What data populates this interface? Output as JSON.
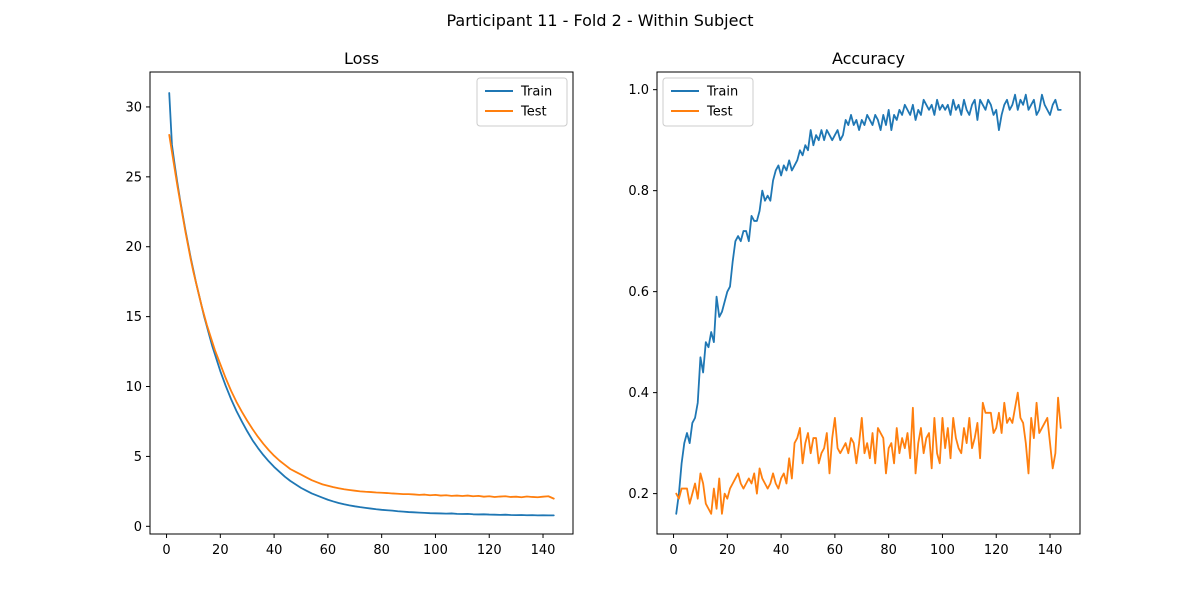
{
  "figure": {
    "suptitle": "Participant 11 - Fold 2 - Within Subject"
  },
  "colors": {
    "train": "#1f77b4",
    "test": "#ff7f0e"
  },
  "chart_data": [
    {
      "type": "line",
      "title": "Loss",
      "xlabel": "",
      "ylabel": "",
      "xlim": [
        -6.15,
        151.15
      ],
      "ylim": [
        -0.55,
        32.5
      ],
      "xticks": [
        0,
        20,
        40,
        60,
        80,
        100,
        120,
        140
      ],
      "yticks": [
        0,
        5,
        10,
        15,
        20,
        25,
        30
      ],
      "ytick_labels": [
        "0",
        "5",
        "10",
        "15",
        "20",
        "25",
        "30"
      ],
      "legend": "top-right",
      "grid": false,
      "series": [
        {
          "name": "Train",
          "x": [
            1,
            2,
            3,
            4,
            5,
            6,
            7,
            8,
            9,
            10,
            11,
            12,
            13,
            14,
            15,
            16,
            17,
            18,
            19,
            20,
            22,
            24,
            26,
            28,
            30,
            32,
            34,
            36,
            38,
            40,
            42,
            44,
            46,
            48,
            50,
            52,
            54,
            56,
            58,
            60,
            62,
            64,
            66,
            68,
            70,
            72,
            74,
            76,
            78,
            80,
            82,
            84,
            86,
            88,
            90,
            92,
            94,
            96,
            98,
            100,
            102,
            104,
            106,
            108,
            110,
            112,
            114,
            116,
            118,
            120,
            122,
            124,
            126,
            128,
            130,
            132,
            134,
            136,
            138,
            140,
            142,
            144
          ],
          "y": [
            31.0,
            27.3,
            25.9,
            24.6,
            23.4,
            22.3,
            21.2,
            20.2,
            19.2,
            18.3,
            17.4,
            16.6,
            15.8,
            15.0,
            14.3,
            13.6,
            12.9,
            12.3,
            11.7,
            11.1,
            10.05,
            9.1,
            8.25,
            7.5,
            6.8,
            6.15,
            5.6,
            5.1,
            4.65,
            4.25,
            3.9,
            3.55,
            3.25,
            3.0,
            2.75,
            2.55,
            2.35,
            2.2,
            2.05,
            1.9,
            1.78,
            1.67,
            1.58,
            1.5,
            1.43,
            1.37,
            1.32,
            1.27,
            1.22,
            1.18,
            1.15,
            1.12,
            1.08,
            1.05,
            1.02,
            1.0,
            0.98,
            0.96,
            0.94,
            0.93,
            0.92,
            0.91,
            0.92,
            0.89,
            0.88,
            0.89,
            0.86,
            0.85,
            0.86,
            0.84,
            0.83,
            0.82,
            0.83,
            0.81,
            0.8,
            0.81,
            0.79,
            0.8,
            0.78,
            0.79,
            0.78,
            0.78
          ]
        },
        {
          "name": "Test",
          "x": [
            1,
            2,
            3,
            4,
            5,
            6,
            7,
            8,
            9,
            10,
            11,
            12,
            13,
            14,
            15,
            16,
            17,
            18,
            19,
            20,
            22,
            24,
            26,
            28,
            30,
            32,
            34,
            36,
            38,
            40,
            42,
            44,
            46,
            48,
            50,
            52,
            54,
            56,
            58,
            60,
            62,
            64,
            66,
            68,
            70,
            72,
            74,
            76,
            78,
            80,
            82,
            84,
            86,
            88,
            90,
            92,
            94,
            96,
            98,
            100,
            102,
            104,
            106,
            108,
            110,
            112,
            114,
            116,
            118,
            120,
            122,
            124,
            126,
            128,
            130,
            132,
            134,
            136,
            138,
            140,
            142,
            144
          ],
          "y": [
            28.0,
            26.8,
            25.6,
            24.4,
            23.3,
            22.2,
            21.1,
            20.1,
            19.1,
            18.2,
            17.4,
            16.6,
            15.8,
            15.1,
            14.4,
            13.8,
            13.2,
            12.6,
            12.1,
            11.6,
            10.6,
            9.7,
            8.9,
            8.2,
            7.55,
            6.95,
            6.4,
            5.9,
            5.45,
            5.05,
            4.7,
            4.4,
            4.1,
            3.9,
            3.7,
            3.5,
            3.3,
            3.15,
            3.0,
            2.9,
            2.8,
            2.72,
            2.65,
            2.6,
            2.55,
            2.5,
            2.47,
            2.45,
            2.42,
            2.4,
            2.38,
            2.35,
            2.33,
            2.3,
            2.3,
            2.28,
            2.25,
            2.27,
            2.22,
            2.25,
            2.2,
            2.22,
            2.18,
            2.2,
            2.17,
            2.2,
            2.15,
            2.18,
            2.12,
            2.15,
            2.1,
            2.13,
            2.15,
            2.1,
            2.12,
            2.08,
            2.13,
            2.1,
            2.08,
            2.12,
            2.15,
            1.98
          ]
        }
      ]
    },
    {
      "type": "line",
      "title": "Accuracy",
      "xlabel": "",
      "ylabel": "",
      "xlim": [
        -6.15,
        151.15
      ],
      "ylim": [
        0.12,
        1.035
      ],
      "xticks": [
        0,
        20,
        40,
        60,
        80,
        100,
        120,
        140
      ],
      "yticks": [
        0.2,
        0.4,
        0.6,
        0.8,
        1.0
      ],
      "ytick_labels": [
        "0.2",
        "0.4",
        "0.6",
        "0.8",
        "1.0"
      ],
      "legend": "top-left",
      "grid": false,
      "series": [
        {
          "name": "Train",
          "x": [
            1,
            2,
            3,
            4,
            5,
            6,
            7,
            8,
            9,
            10,
            11,
            12,
            13,
            14,
            15,
            16,
            17,
            18,
            19,
            20,
            21,
            22,
            23,
            24,
            25,
            26,
            27,
            28,
            29,
            30,
            31,
            32,
            33,
            34,
            35,
            36,
            37,
            38,
            39,
            40,
            41,
            42,
            43,
            44,
            45,
            46,
            47,
            48,
            49,
            50,
            51,
            52,
            53,
            54,
            55,
            56,
            57,
            58,
            59,
            60,
            61,
            62,
            63,
            64,
            65,
            66,
            67,
            68,
            69,
            70,
            71,
            72,
            73,
            74,
            75,
            76,
            77,
            78,
            79,
            80,
            81,
            82,
            83,
            84,
            85,
            86,
            87,
            88,
            89,
            90,
            91,
            92,
            93,
            94,
            95,
            96,
            97,
            98,
            99,
            100,
            101,
            102,
            103,
            104,
            105,
            106,
            107,
            108,
            109,
            110,
            111,
            112,
            113,
            114,
            115,
            116,
            117,
            118,
            119,
            120,
            121,
            122,
            123,
            124,
            125,
            126,
            127,
            128,
            129,
            130,
            131,
            132,
            133,
            134,
            135,
            136,
            137,
            138,
            139,
            140,
            141,
            142,
            143,
            144
          ],
          "y": [
            0.16,
            0.2,
            0.26,
            0.3,
            0.32,
            0.3,
            0.34,
            0.35,
            0.38,
            0.47,
            0.44,
            0.5,
            0.49,
            0.52,
            0.5,
            0.59,
            0.55,
            0.56,
            0.58,
            0.6,
            0.61,
            0.66,
            0.7,
            0.71,
            0.7,
            0.72,
            0.72,
            0.7,
            0.75,
            0.74,
            0.74,
            0.76,
            0.8,
            0.78,
            0.79,
            0.78,
            0.82,
            0.84,
            0.85,
            0.83,
            0.85,
            0.84,
            0.86,
            0.84,
            0.85,
            0.86,
            0.88,
            0.87,
            0.89,
            0.88,
            0.92,
            0.89,
            0.91,
            0.9,
            0.92,
            0.9,
            0.92,
            0.91,
            0.9,
            0.91,
            0.92,
            0.9,
            0.91,
            0.94,
            0.93,
            0.95,
            0.93,
            0.94,
            0.92,
            0.94,
            0.93,
            0.95,
            0.94,
            0.93,
            0.95,
            0.94,
            0.92,
            0.95,
            0.93,
            0.96,
            0.92,
            0.95,
            0.94,
            0.96,
            0.95,
            0.97,
            0.96,
            0.95,
            0.97,
            0.94,
            0.96,
            0.95,
            0.98,
            0.97,
            0.96,
            0.97,
            0.95,
            0.98,
            0.96,
            0.97,
            0.96,
            0.97,
            0.95,
            0.98,
            0.96,
            0.97,
            0.95,
            0.98,
            0.96,
            0.95,
            0.97,
            0.98,
            0.94,
            0.98,
            0.97,
            0.96,
            0.98,
            0.97,
            0.95,
            0.96,
            0.92,
            0.95,
            0.97,
            0.98,
            0.96,
            0.97,
            0.99,
            0.96,
            0.98,
            0.97,
            0.99,
            0.96,
            0.97,
            0.98,
            0.95,
            0.96,
            0.99,
            0.97,
            0.96,
            0.95,
            0.97,
            0.98,
            0.96,
            0.96
          ]
        },
        {
          "name": "Test",
          "x": [
            1,
            2,
            3,
            4,
            5,
            6,
            7,
            8,
            9,
            10,
            11,
            12,
            13,
            14,
            15,
            16,
            17,
            18,
            19,
            20,
            21,
            22,
            23,
            24,
            25,
            26,
            27,
            28,
            29,
            30,
            31,
            32,
            33,
            34,
            35,
            36,
            37,
            38,
            39,
            40,
            41,
            42,
            43,
            44,
            45,
            46,
            47,
            48,
            49,
            50,
            51,
            52,
            53,
            54,
            55,
            56,
            57,
            58,
            59,
            60,
            61,
            62,
            63,
            64,
            65,
            66,
            67,
            68,
            69,
            70,
            71,
            72,
            73,
            74,
            75,
            76,
            77,
            78,
            79,
            80,
            81,
            82,
            83,
            84,
            85,
            86,
            87,
            88,
            89,
            90,
            91,
            92,
            93,
            94,
            95,
            96,
            97,
            98,
            99,
            100,
            101,
            102,
            103,
            104,
            105,
            106,
            107,
            108,
            109,
            110,
            111,
            112,
            113,
            114,
            115,
            116,
            117,
            118,
            119,
            120,
            121,
            122,
            123,
            124,
            125,
            126,
            127,
            128,
            129,
            130,
            131,
            132,
            133,
            134,
            135,
            136,
            137,
            138,
            139,
            140,
            141,
            142,
            143,
            144
          ],
          "y": [
            0.2,
            0.19,
            0.21,
            0.21,
            0.21,
            0.18,
            0.2,
            0.22,
            0.19,
            0.24,
            0.22,
            0.18,
            0.17,
            0.16,
            0.21,
            0.17,
            0.23,
            0.16,
            0.2,
            0.19,
            0.21,
            0.22,
            0.23,
            0.24,
            0.22,
            0.21,
            0.22,
            0.23,
            0.22,
            0.24,
            0.2,
            0.25,
            0.23,
            0.22,
            0.21,
            0.22,
            0.24,
            0.22,
            0.21,
            0.23,
            0.24,
            0.22,
            0.27,
            0.23,
            0.3,
            0.31,
            0.33,
            0.26,
            0.3,
            0.32,
            0.28,
            0.31,
            0.31,
            0.26,
            0.28,
            0.29,
            0.32,
            0.24,
            0.31,
            0.35,
            0.29,
            0.28,
            0.29,
            0.3,
            0.28,
            0.31,
            0.3,
            0.26,
            0.3,
            0.35,
            0.28,
            0.3,
            0.27,
            0.32,
            0.26,
            0.33,
            0.32,
            0.31,
            0.24,
            0.29,
            0.3,
            0.26,
            0.33,
            0.28,
            0.31,
            0.29,
            0.32,
            0.27,
            0.37,
            0.24,
            0.3,
            0.33,
            0.28,
            0.31,
            0.32,
            0.25,
            0.35,
            0.28,
            0.26,
            0.35,
            0.29,
            0.33,
            0.27,
            0.35,
            0.31,
            0.29,
            0.28,
            0.33,
            0.3,
            0.35,
            0.29,
            0.31,
            0.34,
            0.27,
            0.38,
            0.36,
            0.36,
            0.36,
            0.32,
            0.33,
            0.36,
            0.32,
            0.38,
            0.34,
            0.35,
            0.34,
            0.37,
            0.4,
            0.35,
            0.34,
            0.3,
            0.24,
            0.35,
            0.31,
            0.38,
            0.32,
            0.33,
            0.34,
            0.35,
            0.3,
            0.25,
            0.28,
            0.39,
            0.33
          ]
        }
      ]
    }
  ]
}
